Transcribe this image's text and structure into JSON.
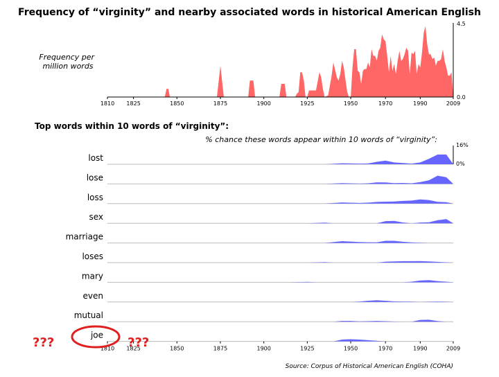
{
  "title": "Frequency of “virginity” and nearby associated words in historical American English",
  "top_ylabel": "Frequency per million words",
  "top_ymax_label": "4.5",
  "top_ymin_label": "0.0",
  "x_ticks": [
    "1810",
    "1825",
    "1850",
    "1875",
    "1900",
    "1925",
    "1950",
    "1970",
    "1990",
    "2009"
  ],
  "section_title": "Top words within 10 words of “virginity”:",
  "section_subtitle": "% chance these words appear within 10 words of “virginity”:",
  "small_ymax_label": "16%",
  "small_ymin_label": "0%",
  "source": "Source: Corpus of Historical American English (COHA)",
  "annotation_left": "???",
  "annotation_right": "???",
  "colors": {
    "top_fill": "#ff6666",
    "word_fill": "#6666ff",
    "annotation": "#e02020"
  },
  "chart_data": [
    {
      "type": "area",
      "title": "Frequency of “virginity” and nearby associated words in historical American English",
      "ylabel": "Frequency per million words",
      "xlim": [
        1810,
        2009
      ],
      "ylim": [
        0,
        4.5
      ],
      "x": [
        1810,
        1843,
        1844,
        1845,
        1846,
        1873,
        1875,
        1877,
        1891,
        1892,
        1894,
        1895,
        1909,
        1910,
        1912,
        1913,
        1918,
        1919,
        1920,
        1921,
        1922,
        1923,
        1924,
        1925,
        1926,
        1928,
        1930,
        1932,
        1933,
        1934,
        1935,
        1937,
        1939,
        1940,
        1942,
        1943,
        1944,
        1945,
        1946,
        1948,
        1949,
        1950,
        1951,
        1952,
        1953,
        1954,
        1955,
        1956,
        1957,
        1958,
        1959,
        1960,
        1961,
        1962,
        1963,
        1964,
        1965,
        1966,
        1967,
        1968,
        1969,
        1970,
        1971,
        1972,
        1973,
        1974,
        1975,
        1976,
        1977,
        1978,
        1979,
        1980,
        1981,
        1982,
        1983,
        1984,
        1985,
        1986,
        1987,
        1988,
        1989,
        1990,
        1991,
        1992,
        1993,
        1994,
        1995,
        1996,
        1997,
        1998,
        1999,
        2000,
        2001,
        2002,
        2003,
        2004,
        2005,
        2006,
        2007,
        2008,
        2009
      ],
      "y": [
        0,
        0,
        0.5,
        0.5,
        0,
        0,
        1.9,
        0,
        0,
        1.0,
        1.0,
        0,
        0,
        0.8,
        0.8,
        0,
        0,
        0.2,
        0.3,
        1.5,
        1.5,
        1.0,
        0,
        0,
        0.4,
        0.4,
        0.4,
        1.5,
        1.2,
        0.5,
        0,
        0.1,
        1.3,
        2.1,
        1.2,
        1.0,
        1.4,
        2.2,
        1.8,
        0.3,
        0,
        0,
        1.8,
        2.9,
        2.9,
        1.6,
        1.5,
        0.8,
        1.6,
        1.7,
        1.7,
        2.1,
        1.8,
        2.9,
        2.5,
        2.5,
        2.2,
        2.8,
        3.0,
        3.8,
        3.5,
        3.4,
        2.5,
        1.5,
        2.5,
        1.6,
        2.0,
        1.4,
        2.2,
        2.8,
        2.2,
        2.3,
        2.6,
        3.0,
        2.8,
        1.4,
        2.7,
        2.6,
        2.8,
        1.4,
        2.0,
        1.8,
        2.7,
        3.9,
        4.3,
        3.2,
        2.6,
        2.6,
        2.3,
        2.4,
        1.9,
        2.2,
        2.2,
        2.3,
        2.9,
        2.2,
        1.8,
        1.3,
        1.3,
        1.5,
        0
      ]
    },
    {
      "type": "area",
      "title": "% chance these words appear within 10 words of “virginity”:",
      "xlim": [
        1810,
        2009
      ],
      "ylim": [
        0,
        16
      ],
      "series": [
        {
          "name": "lost",
          "x": [
            1810,
            1935,
            1945,
            1955,
            1960,
            1965,
            1970,
            1975,
            1980,
            1985,
            1990,
            1995,
            2000,
            2005,
            2009
          ],
          "y": [
            0,
            0,
            0.8,
            0.5,
            0.6,
            2.0,
            3.0,
            1.5,
            1.0,
            0.5,
            1.5,
            4.5,
            8.0,
            8.0,
            0
          ]
        },
        {
          "name": "lose",
          "x": [
            1810,
            1935,
            1945,
            1955,
            1960,
            1965,
            1970,
            1975,
            1980,
            1985,
            1990,
            1995,
            2000,
            2005,
            2009
          ],
          "y": [
            0,
            0,
            0.6,
            0.3,
            0.5,
            1.3,
            1.2,
            0.6,
            0.8,
            0.5,
            1.5,
            3.0,
            6.8,
            5.5,
            0
          ]
        },
        {
          "name": "loss",
          "x": [
            1810,
            1935,
            1945,
            1955,
            1960,
            1965,
            1970,
            1975,
            1980,
            1985,
            1990,
            1995,
            2000,
            2005,
            2009
          ],
          "y": [
            0,
            0,
            1.0,
            0.5,
            0.8,
            1.4,
            1.6,
            1.8,
            2.2,
            2.5,
            3.5,
            3.0,
            1.5,
            1.2,
            0
          ]
        },
        {
          "name": "sex",
          "x": [
            1810,
            1925,
            1935,
            1940,
            1965,
            1970,
            1975,
            1980,
            1985,
            1990,
            1995,
            2000,
            2005,
            2009
          ],
          "y": [
            0,
            0,
            0.5,
            0,
            0,
            1.8,
            2.0,
            0.7,
            0,
            0.6,
            0.8,
            2.5,
            3.5,
            0
          ]
        },
        {
          "name": "marriage",
          "x": [
            1810,
            1935,
            1945,
            1955,
            1960,
            1965,
            1970,
            1975,
            1980,
            1985,
            1990,
            1995,
            2009
          ],
          "y": [
            0,
            0,
            1.5,
            0.8,
            0.6,
            0.6,
            1.8,
            1.8,
            1.0,
            0.5,
            0.2,
            0,
            0
          ]
        },
        {
          "name": "loses",
          "x": [
            1810,
            1925,
            1935,
            1940,
            1965,
            1970,
            1975,
            1980,
            1985,
            1990,
            1995,
            2000,
            2005,
            2009
          ],
          "y": [
            0,
            0,
            0.4,
            0,
            0,
            0.8,
            1.0,
            1.2,
            1.2,
            1.3,
            1.0,
            0.6,
            0.3,
            0
          ]
        },
        {
          "name": "mary",
          "x": [
            1810,
            1915,
            1925,
            1930,
            1980,
            1985,
            1990,
            1995,
            2000,
            2005,
            2009
          ],
          "y": [
            0,
            0,
            0.4,
            0,
            0,
            0.5,
            1.5,
            1.8,
            1.0,
            0.5,
            0
          ]
        },
        {
          "name": "even",
          "x": [
            1810,
            1950,
            1955,
            1960,
            1965,
            1970,
            1975,
            1980,
            1985,
            1990,
            1995,
            2000,
            2005,
            2009
          ],
          "y": [
            0,
            0,
            0.4,
            1.0,
            1.4,
            1.0,
            0.5,
            0.4,
            0.3,
            0,
            0.2,
            0.4,
            0.2,
            0
          ]
        },
        {
          "name": "mutual",
          "x": [
            1810,
            1940,
            1945,
            1950,
            1955,
            1960,
            1965,
            1970,
            1975,
            1980,
            1985,
            1990,
            1995,
            2000,
            2005,
            2009
          ],
          "y": [
            0,
            0,
            0.6,
            0.6,
            0.2,
            0.4,
            0.6,
            0.4,
            0.1,
            0,
            0,
            1.5,
            1.6,
            0.5,
            0,
            0
          ]
        },
        {
          "name": "joe",
          "x": [
            1810,
            1940,
            1945,
            1950,
            1955,
            1960,
            1965,
            1970,
            2009
          ],
          "y": [
            0,
            0,
            1.5,
            1.8,
            1.5,
            1.0,
            0.5,
            0,
            0
          ]
        }
      ]
    }
  ]
}
